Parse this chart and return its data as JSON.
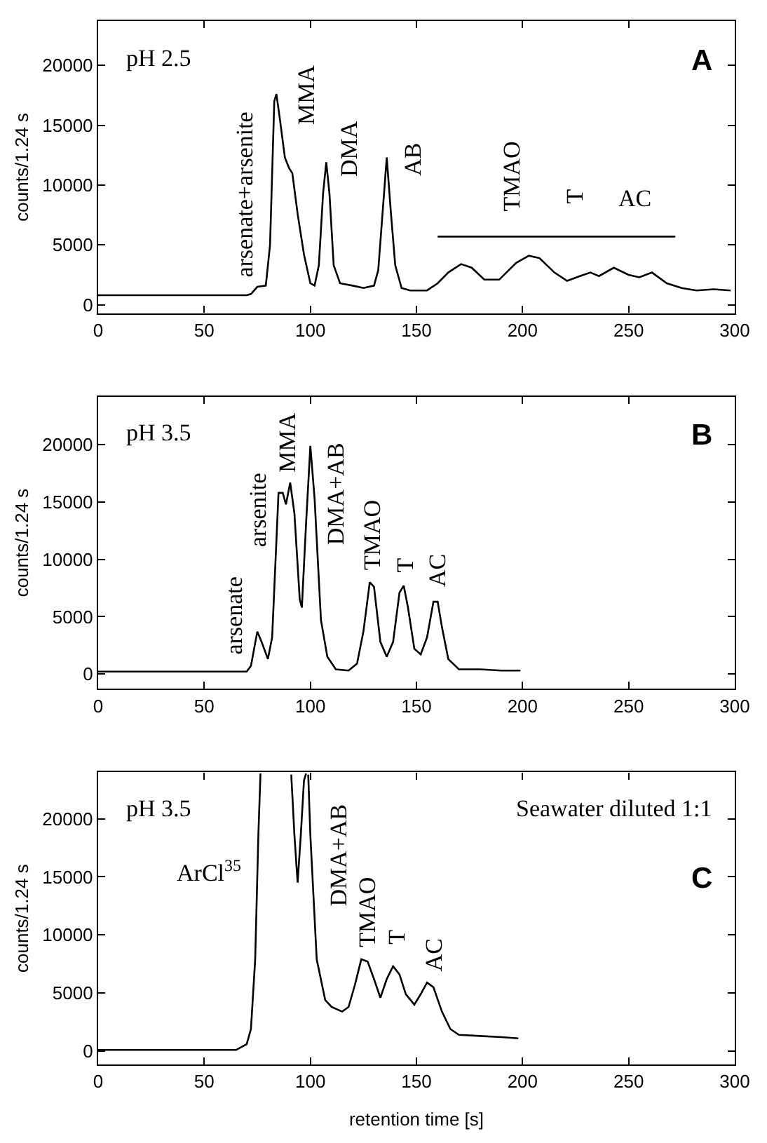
{
  "chart_data": [
    {
      "type": "line",
      "ylabel": "counts/1.24 s",
      "xlim": [
        0,
        300
      ],
      "ylim": [
        -700,
        23700
      ],
      "xticks": [
        0,
        50,
        100,
        150,
        200,
        250,
        300
      ],
      "yticks": [
        0,
        5000,
        10000,
        15000,
        20000
      ],
      "series": [
        {
          "color": "#000000",
          "x": [
            0,
            20,
            40,
            60,
            70,
            72,
            75,
            79,
            81,
            83,
            84,
            85.5,
            88,
            90,
            91.5,
            94,
            97,
            100,
            102,
            104,
            106,
            107.5,
            109,
            111,
            114,
            120,
            125,
            130,
            132,
            134,
            136,
            138,
            140,
            143,
            147,
            155,
            160,
            165,
            171,
            176,
            182,
            189,
            197,
            203,
            208,
            215,
            221,
            227,
            232,
            236,
            243,
            250,
            255,
            261,
            268,
            275,
            282,
            290,
            298
          ],
          "values": [
            800,
            800,
            800,
            800,
            800,
            900,
            1500,
            1600,
            5000,
            17000,
            17600,
            15700,
            12300,
            11400,
            11000,
            7600,
            4200,
            1800,
            1600,
            3300,
            9300,
            11900,
            9300,
            3300,
            1800,
            1600,
            1400,
            1600,
            2900,
            7600,
            12300,
            7600,
            3300,
            1400,
            1200,
            1200,
            1800,
            2700,
            3400,
            3100,
            2100,
            2100,
            3500,
            4100,
            3900,
            2700,
            2000,
            2400,
            2700,
            2400,
            3100,
            2500,
            2300,
            2700,
            1800,
            1400,
            1200,
            1300,
            1200
          ]
        },
        {
          "type": "line",
          "color": "#000000",
          "x": [
            160,
            272
          ],
          "values": [
            5700,
            5700
          ]
        }
      ],
      "annotations": [
        "pH 2.5",
        "A",
        "arsenate+arsenite",
        "MMA",
        "DMA",
        "AB",
        "TMAO",
        "T",
        "AC"
      ]
    },
    {
      "type": "line",
      "ylabel": "counts/1.24 s",
      "xlim": [
        0,
        300
      ],
      "ylim": [
        -1300,
        24200
      ],
      "xticks": [
        0,
        50,
        100,
        150,
        200,
        250,
        300
      ],
      "yticks": [
        0,
        5000,
        10000,
        15000,
        20000
      ],
      "series": [
        {
          "color": "#000000",
          "x": [
            0,
            20,
            40,
            60,
            70,
            72,
            75,
            77,
            80,
            82,
            85,
            87,
            88.5,
            90.5,
            92.5,
            95,
            96,
            98,
            100,
            102,
            105,
            108,
            112,
            118,
            122,
            125,
            128,
            130,
            133,
            136,
            139,
            142,
            144,
            146,
            149,
            152,
            155,
            158,
            160,
            162,
            165,
            170,
            180,
            190,
            199
          ],
          "values": [
            200,
            200,
            200,
            200,
            200,
            700,
            3700,
            2800,
            1300,
            3200,
            15800,
            15800,
            14800,
            16700,
            14000,
            6500,
            5800,
            13200,
            19900,
            15300,
            4700,
            1500,
            400,
            300,
            900,
            3700,
            8000,
            7600,
            2800,
            1500,
            2800,
            7100,
            7700,
            5800,
            2200,
            1700,
            3200,
            6300,
            6300,
            4100,
            1300,
            400,
            400,
            300,
            300
          ]
        }
      ],
      "annotations": [
        "pH 3.5",
        "B",
        "arsenate",
        "arsenite",
        "MMA",
        "DMA+AB",
        "TMAO",
        "T",
        "AC"
      ]
    },
    {
      "type": "line",
      "xlabel": "retention time [s]",
      "ylabel": "counts/1.24 s",
      "xlim": [
        0,
        300
      ],
      "ylim": [
        -1150,
        24000
      ],
      "xticks": [
        0,
        50,
        100,
        150,
        200,
        250,
        300
      ],
      "yticks": [
        0,
        5000,
        10000,
        15000,
        20000
      ],
      "series": [
        {
          "color": "#000000",
          "x": [
            0,
            20,
            40,
            65,
            70,
            72,
            74,
            75.5,
            76.5,
            84,
            91,
            92.5,
            94,
            95.5,
            97,
            98,
            98.5,
            99,
            100,
            103,
            107,
            110,
            115,
            118,
            121,
            124,
            127,
            130,
            133,
            136,
            139,
            142,
            145,
            149,
            152,
            155,
            158,
            162,
            166,
            170,
            180,
            190,
            198
          ],
          "values": [
            100,
            100,
            100,
            100,
            600,
            1900,
            7900,
            18600,
            23900,
            null,
            23800,
            18600,
            14500,
            18600,
            23300,
            23900,
            null,
            23800,
            18600,
            7900,
            4400,
            3800,
            3400,
            3800,
            5700,
            7900,
            7700,
            6200,
            4600,
            6200,
            7300,
            6600,
            4900,
            4000,
            4900,
            5900,
            5500,
            3400,
            1900,
            1400,
            1300,
            1200,
            1100
          ]
        }
      ],
      "annotations": [
        "pH 3.5",
        "Seawater diluted 1:1",
        "C",
        "ArCl$^{35}$",
        "DMA+AB",
        "TMAO",
        "T",
        "AC"
      ]
    }
  ]
}
